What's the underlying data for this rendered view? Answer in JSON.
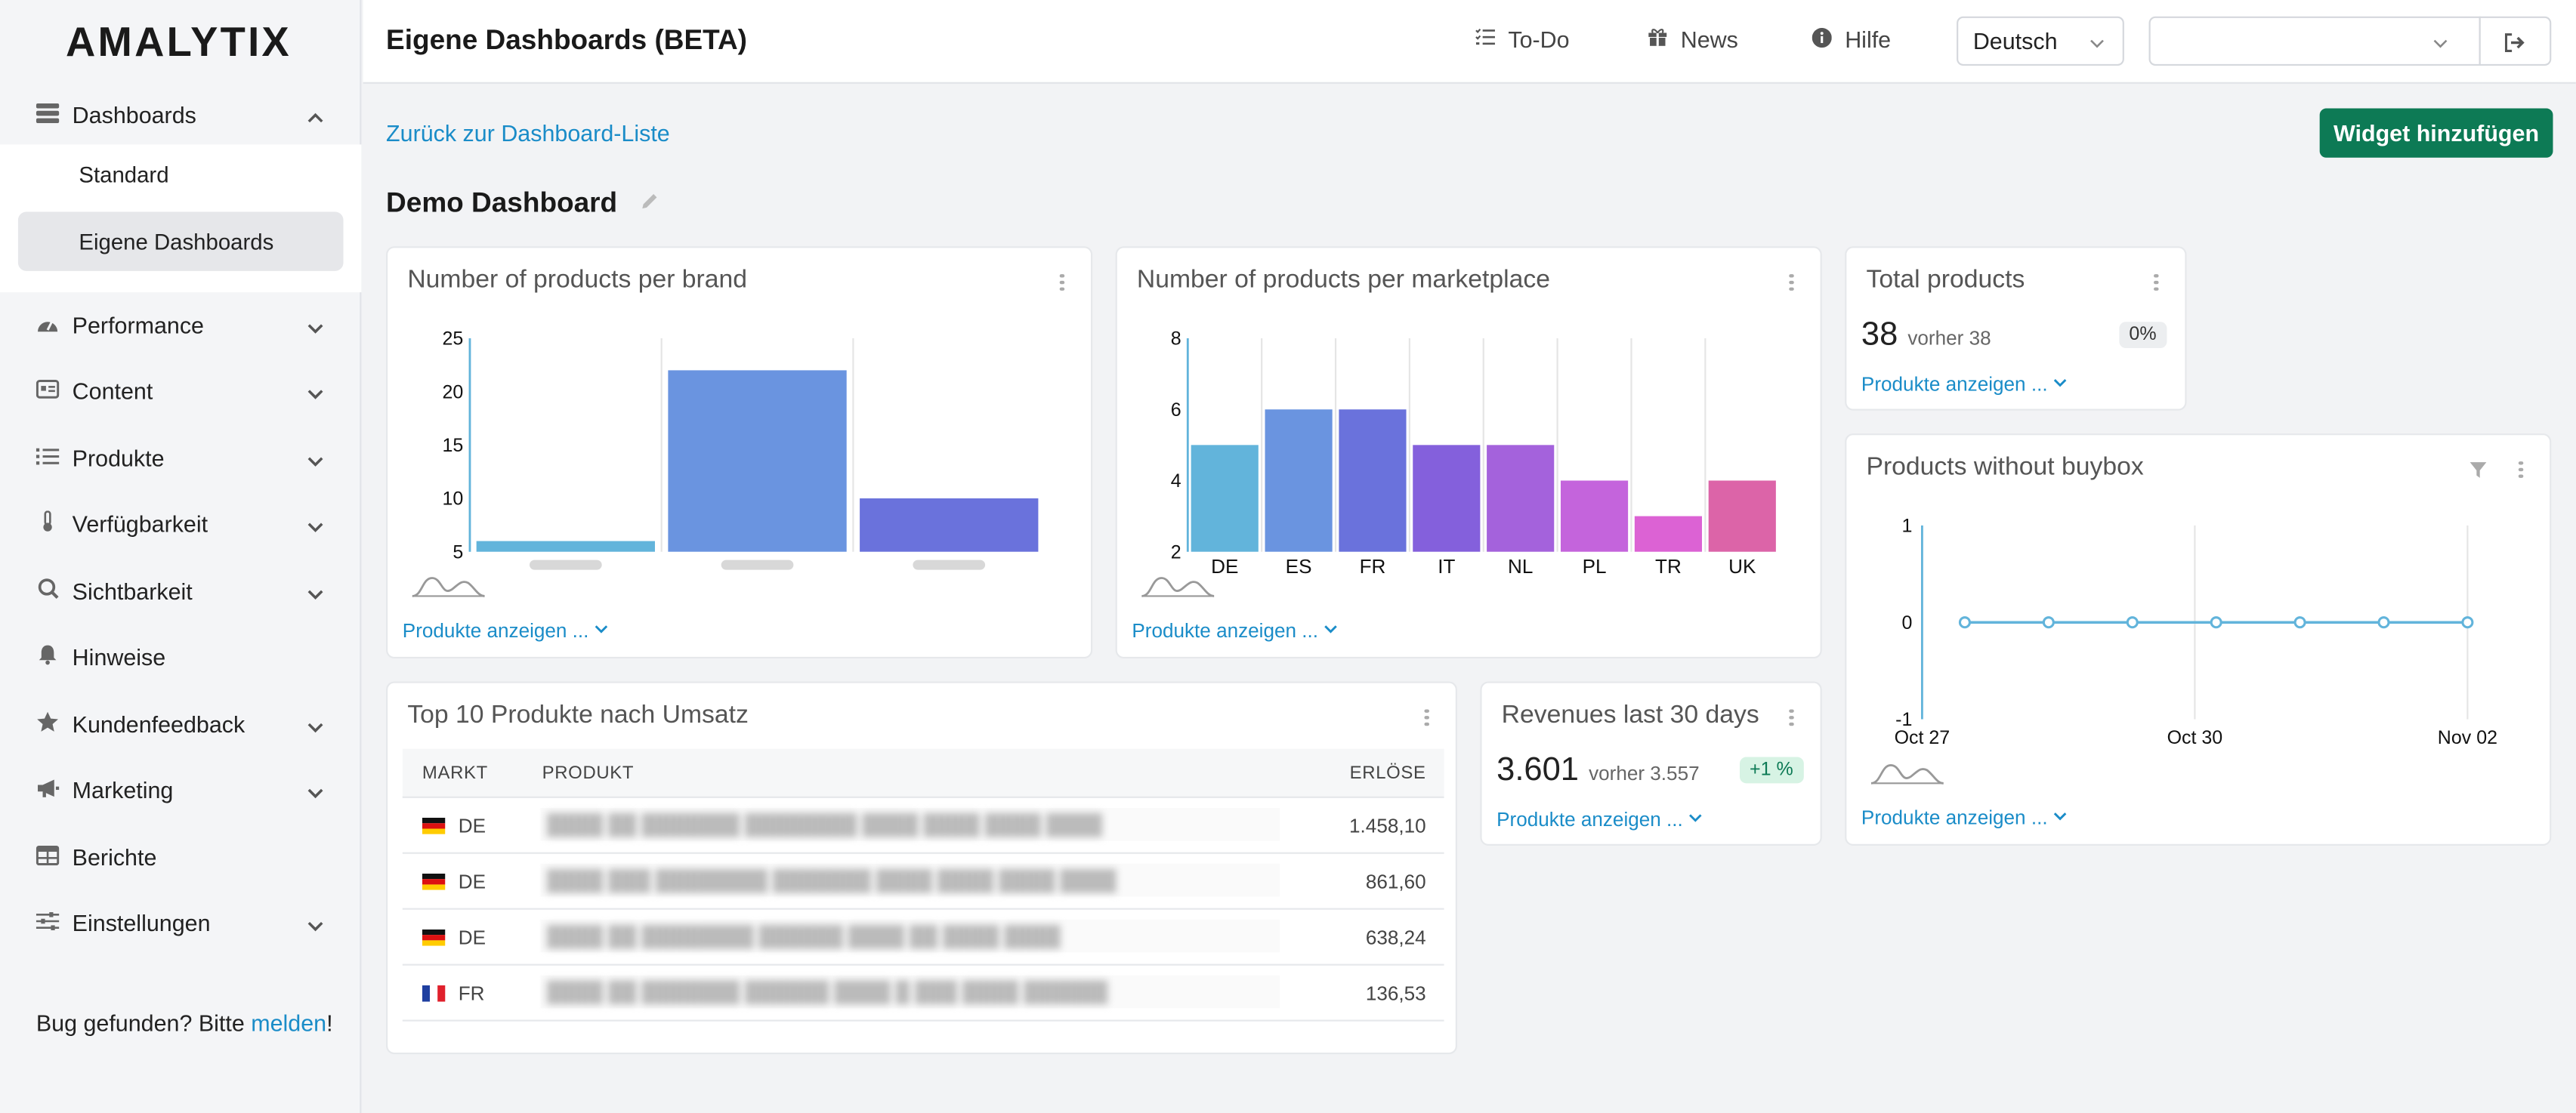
{
  "app": {
    "logo": "AMALYTIX",
    "page_title": "Eigene Dashboards (BETA)"
  },
  "topbar": {
    "todo": "To-Do",
    "news": "News",
    "help": "Hilfe",
    "language": "Deutsch",
    "account_value": ""
  },
  "sidebar": {
    "dashboards": "Dashboards",
    "sub": [
      "Standard",
      "Eigene Dashboards"
    ],
    "items": [
      "Performance",
      "Content",
      "Produkte",
      "Verfügbarkeit",
      "Sichtbarkeit",
      "Hinweise",
      "Kundenfeedback",
      "Marketing",
      "Berichte",
      "Einstellungen"
    ],
    "bug_text": "Bug gefunden? Bitte ",
    "bug_link": "melden",
    "bug_end": "!"
  },
  "main": {
    "back_link": "Zurück zur Dashboard-Liste",
    "add_widget": "Widget hinzufügen",
    "dashboard_title": "Demo Dashboard",
    "show_products": "Produkte anzeigen ..."
  },
  "widgets": {
    "brand": {
      "title": "Number of products per brand"
    },
    "marketplace": {
      "title": "Number of products per marketplace"
    },
    "total": {
      "title": "Total products",
      "value": "38",
      "previous": "vorher 38",
      "change": "0%"
    },
    "buybox": {
      "title": "Products without buybox"
    },
    "revenues": {
      "title": "Revenues last 30 days",
      "value": "3.601",
      "previous": "vorher 3.557",
      "change": "+1 %"
    },
    "top10": {
      "title": "Top 10 Produkte nach Umsatz",
      "columns": [
        "MARKT",
        "PRODUKT",
        "ERLÖSE"
      ],
      "rows": [
        {
          "market": "DE",
          "revenue": "1.458,10"
        },
        {
          "market": "DE",
          "revenue": "861,60"
        },
        {
          "market": "DE",
          "revenue": "638,24"
        },
        {
          "market": "FR",
          "revenue": "136,53"
        }
      ]
    }
  },
  "chart_data": [
    {
      "type": "bar",
      "title": "Number of products per brand",
      "categories": [
        "",
        "",
        ""
      ],
      "values": [
        6,
        22,
        10
      ],
      "ylim": [
        5,
        25
      ],
      "yticks": [
        5,
        10,
        15,
        20,
        25
      ],
      "colors": [
        "#62b4db",
        "#6a94e0",
        "#6a72dc"
      ]
    },
    {
      "type": "bar",
      "title": "Number of products per marketplace",
      "categories": [
        "DE",
        "ES",
        "FR",
        "IT",
        "NL",
        "PL",
        "TR",
        "UK"
      ],
      "values": [
        5,
        6,
        6,
        5,
        5,
        4,
        3,
        4
      ],
      "ylim": [
        2,
        8
      ],
      "yticks": [
        2,
        4,
        6,
        8
      ],
      "colors": [
        "#62b4db",
        "#6a94e0",
        "#6a72dc",
        "#8460dc",
        "#a462dc",
        "#c464dc",
        "#dc62d4",
        "#dc64a8"
      ]
    },
    {
      "type": "line",
      "title": "Products without buybox",
      "x": [
        "Oct 27",
        "Oct 28",
        "Oct 29",
        "Oct 30",
        "Oct 31",
        "Nov 01",
        "Nov 02"
      ],
      "xticks": [
        "Oct 27",
        "Oct 30",
        "Nov 02"
      ],
      "values": [
        0,
        0,
        0,
        0,
        0,
        0,
        0
      ],
      "ylim": [
        -1,
        1
      ],
      "yticks": [
        -1,
        0,
        1
      ],
      "color": "#62b4db"
    }
  ]
}
